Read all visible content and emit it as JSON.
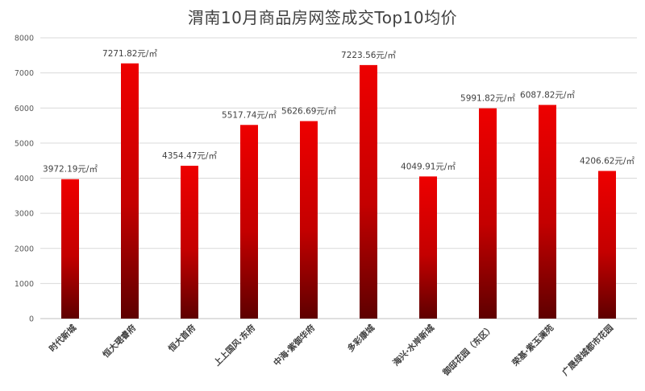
{
  "chart_data": {
    "type": "bar",
    "title": "渭南10月商品房网签成交Top10均价",
    "xlabel": "",
    "ylabel": "",
    "ylim": [
      0,
      8000
    ],
    "yticks": [
      0,
      1000,
      2000,
      3000,
      4000,
      5000,
      6000,
      7000,
      8000
    ],
    "grid": true,
    "legend": "none",
    "categories": [
      "时代新城",
      "恒大珺睿府",
      "恒大首府",
      "上上国风·东府",
      "中海·紫御华府",
      "多彩康城",
      "海兴·水岸新城",
      "御邸花园（东区）",
      "荣基·紫玉澜苑",
      "广晟绿城都市花园"
    ],
    "values": [
      3972.19,
      7271.82,
      4354.47,
      5517.74,
      5626.69,
      7223.56,
      4049.91,
      5991.82,
      6087.82,
      4206.62
    ],
    "data_labels": [
      "3972.19元/㎡",
      "7271.82元/㎡",
      "4354.47元/㎡",
      "5517.74元/㎡",
      "5626.69元/㎡",
      "7223.56元/㎡",
      "4049.91元/㎡",
      "5991.82元/㎡",
      "6087.82元/㎡",
      "4206.62元/㎡"
    ],
    "colors": {
      "bar_top": "#ee0000",
      "bar_bottom": "#5e0000",
      "grid": "#d9d9d9",
      "axis": "#bfbfbf"
    }
  }
}
